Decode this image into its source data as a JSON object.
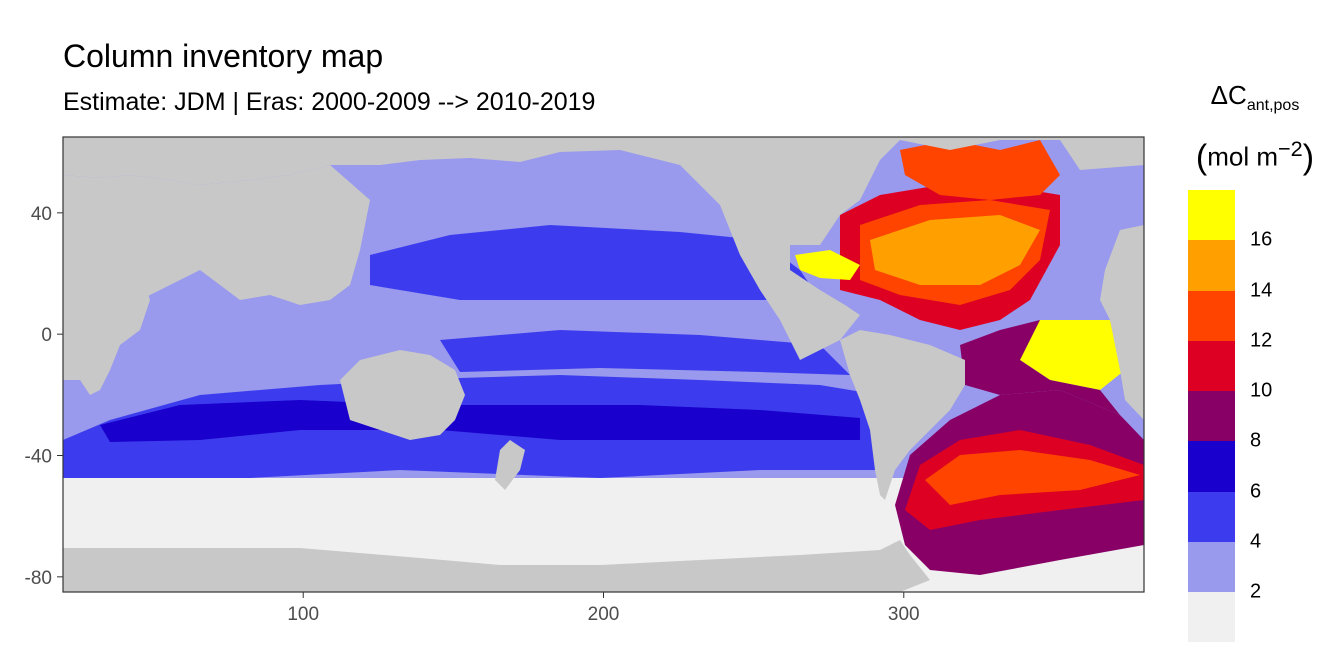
{
  "title": "Column inventory map",
  "subtitle": "Estimate: JDM  | Eras: 2000-2009 --> 2010-2019",
  "legend": {
    "title_main": "ΔC",
    "title_sub": "ant,pos",
    "unit_text": "mol m",
    "unit_exp": "−2",
    "labels": [
      "2",
      "4",
      "6",
      "8",
      "10",
      "12",
      "14",
      "16"
    ],
    "colors": [
      "#f0f0f0",
      "#9999ee",
      "#3c3cee",
      "#1a00cc",
      "#880066",
      "#dd0022",
      "#ff4400",
      "#ffa000",
      "#ffff00"
    ]
  },
  "axes": {
    "x_ticks": [
      "100",
      "200",
      "300"
    ],
    "y_ticks": [
      "40",
      "0",
      "-40",
      "-80"
    ]
  },
  "colors": {
    "land": "#c8c8c8",
    "frame": "#333333",
    "tick": "#4d4d4d"
  }
}
